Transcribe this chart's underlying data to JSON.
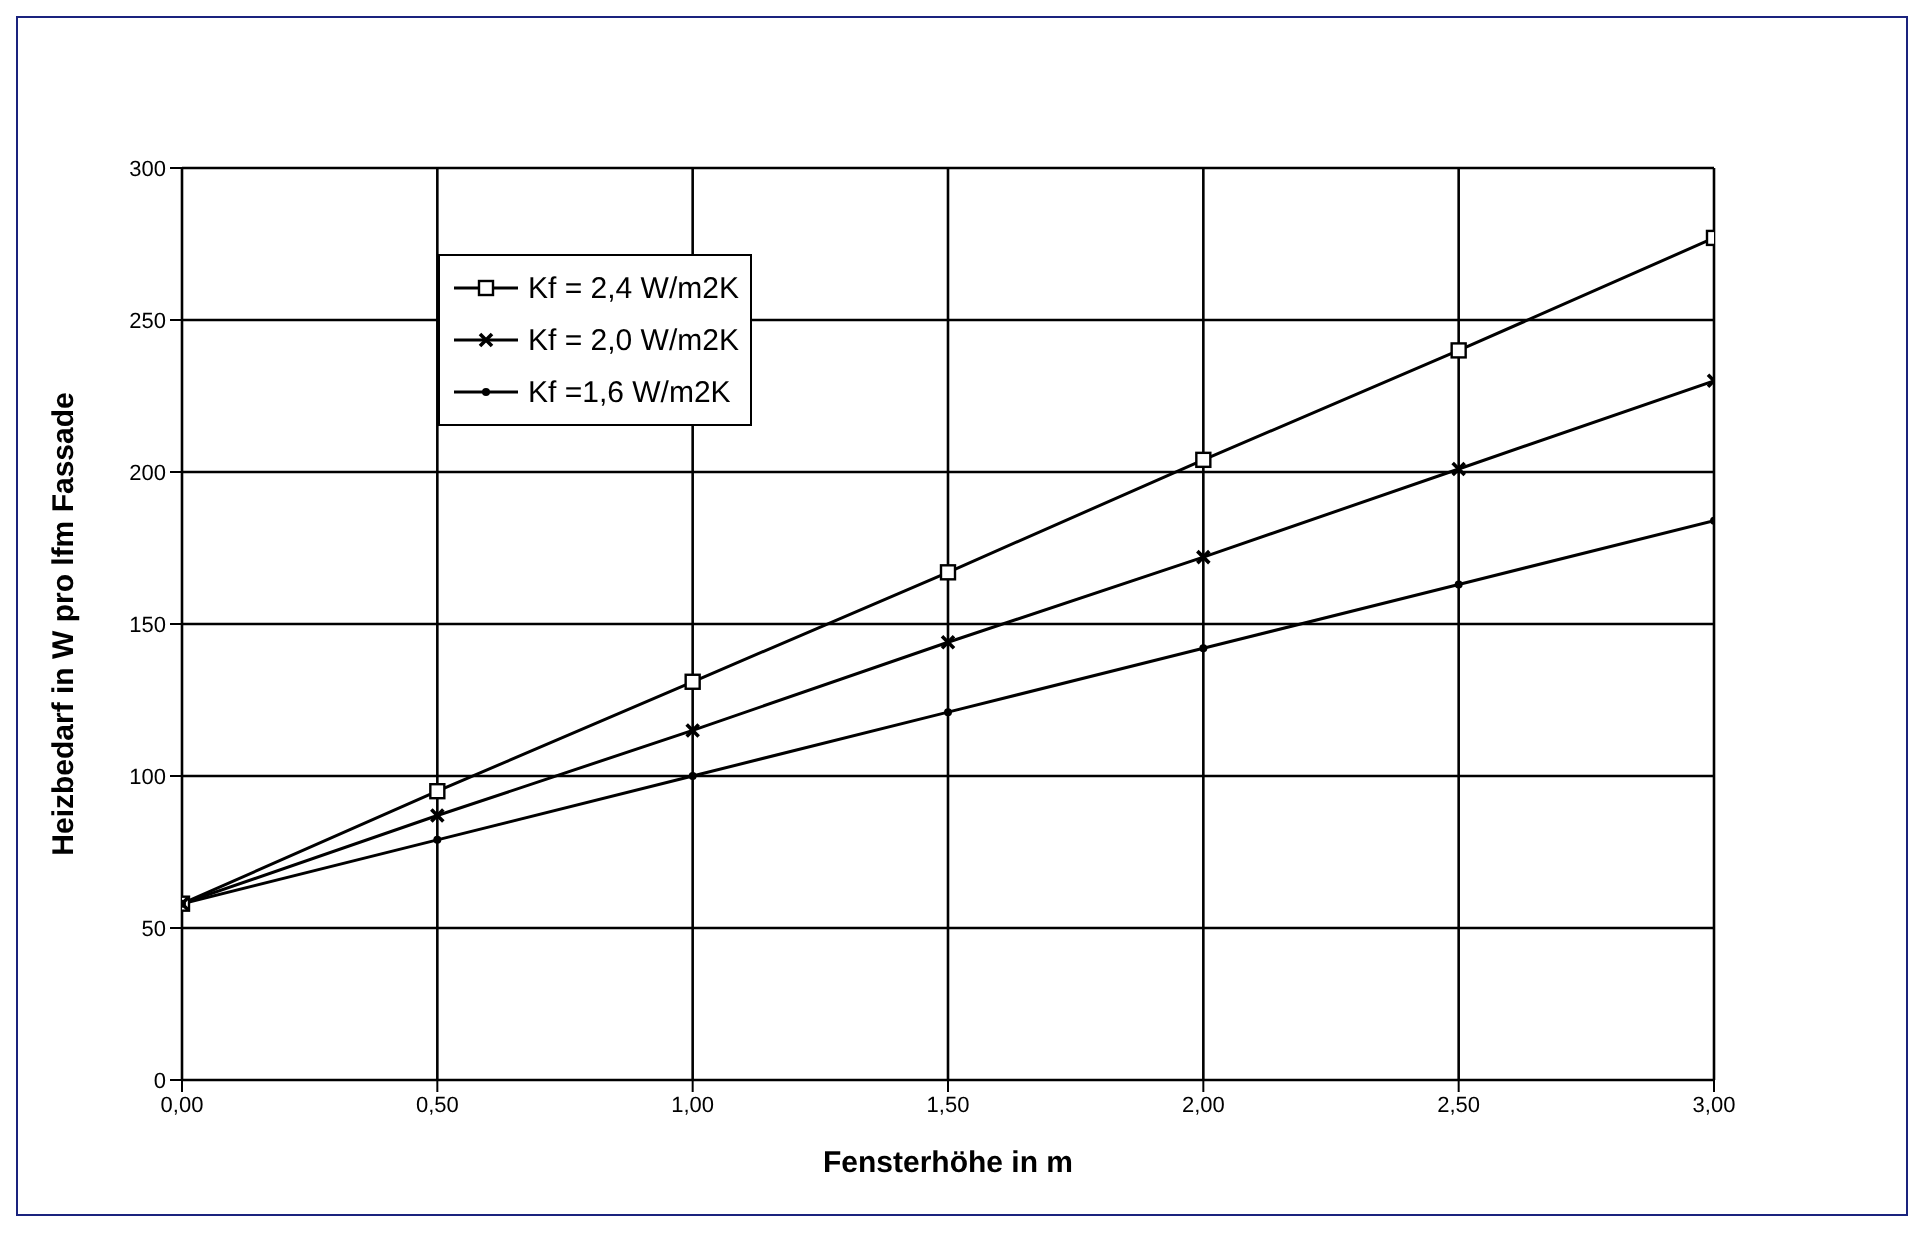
{
  "chart_data": {
    "type": "line",
    "xlabel": "Fensterhöhe in m",
    "ylabel": "Heizbedarf in W pro lfm Fassade",
    "x": [
      0,
      0.5,
      1,
      1.5,
      2,
      2.5,
      3
    ],
    "series": [
      {
        "name": "Kf = 2,4 W/m2K",
        "color": "#000000",
        "marker": "square",
        "values": [
          58,
          95,
          131,
          167,
          204,
          240,
          277
        ]
      },
      {
        "name": "Kf = 2,0 W/m2K",
        "color": "#000000",
        "marker": "cross",
        "values": [
          58,
          87,
          115,
          144,
          172,
          201,
          230
        ]
      },
      {
        "name": "Kf =1,6 W/m2K",
        "color": "#000000",
        "marker": "circle",
        "values": [
          58,
          79,
          100,
          121,
          142,
          163,
          184
        ]
      }
    ],
    "xlim": [
      0,
      3
    ],
    "xticks": [
      {
        "value": 0,
        "label": "0,00"
      },
      {
        "value": 0.5,
        "label": "0,50"
      },
      {
        "value": 1,
        "label": "1,00"
      },
      {
        "value": 1.5,
        "label": "1,50"
      },
      {
        "value": 2,
        "label": "2,00"
      },
      {
        "value": 2.5,
        "label": "2,50"
      },
      {
        "value": 3,
        "label": "3,00"
      }
    ],
    "ylim": [
      0,
      300
    ],
    "yticks": [
      0,
      50,
      100,
      150,
      200,
      250,
      300
    ],
    "grid": true,
    "legend": "top left",
    "line_style": "solid"
  }
}
